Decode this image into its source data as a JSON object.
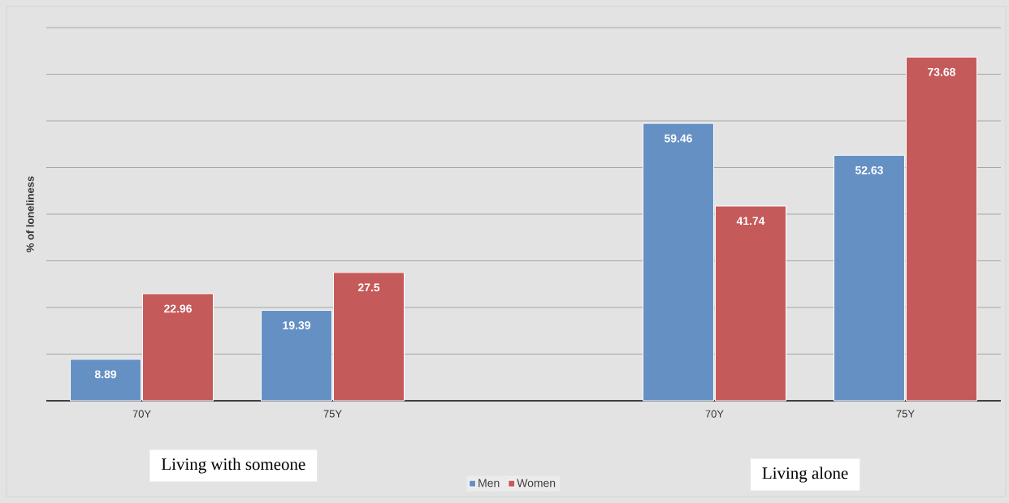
{
  "chart_data": {
    "type": "bar",
    "ylabel": "% of loneliness",
    "categories": [
      "70Y",
      "75Y",
      null,
      "70Y",
      "75Y"
    ],
    "series": [
      {
        "name": "Men",
        "color": "#6590c4",
        "values": [
          8.89,
          19.39,
          null,
          59.46,
          52.63
        ]
      },
      {
        "name": "Women",
        "color": "#c55a5a",
        "values": [
          22.96,
          27.5,
          null,
          41.74,
          73.68
        ]
      }
    ],
    "ylim": [
      0,
      80
    ],
    "yticks": [
      {
        "value": 0,
        "label": null
      },
      {
        "value": 10,
        "label": null
      },
      {
        "value": 20,
        "label": null
      },
      {
        "value": 30,
        "label": null
      },
      {
        "value": 40,
        "label": null
      },
      {
        "value": 50,
        "label": null
      },
      {
        "value": 60,
        "label": null
      },
      {
        "value": 70,
        "label": null
      },
      {
        "value": 80,
        "label": null
      }
    ],
    "tick_labels": "x",
    "grid": "y",
    "legend": "bottom",
    "data_labels": true,
    "annotations": [
      "Living with someone",
      "Living alone"
    ]
  }
}
